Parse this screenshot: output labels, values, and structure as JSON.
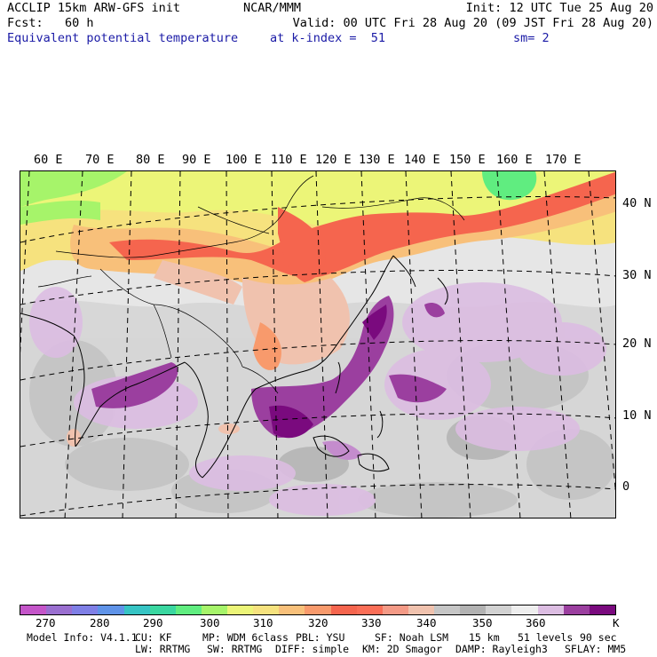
{
  "header": {
    "model": "ACCLIP 15km ARW-GFS init",
    "org": "NCAR/MMM",
    "init": "Init: 12 UTC Tue 25 Aug 20",
    "fcst": "Fcst:   60 h",
    "valid": "Valid: 00 UTC Fri 28 Aug 20 (09 JST Fri 28 Aug 20)",
    "field": "Equivalent potential temperature",
    "level": "at k-index =  51",
    "smooth": "sm= 2"
  },
  "map": {
    "lon_labels": [
      "60 E",
      "70 E",
      "80 E",
      "90 E",
      "100 E",
      "110 E",
      "120 E",
      "130 E",
      "140 E",
      "150 E",
      "160 E",
      "170 E"
    ],
    "lat_labels": [
      "40 N",
      "30 N",
      "20 N",
      "10 N",
      "0"
    ]
  },
  "colorbar": {
    "colors": [
      "#c455c9",
      "#9a6fd0",
      "#7f7fe6",
      "#5f93e8",
      "#36c4c4",
      "#3ad7a0",
      "#60ed80",
      "#a6f46a",
      "#ecf578",
      "#f6e27e",
      "#f8c07a",
      "#f89a6c",
      "#f5654e",
      "#fa6e57",
      "#f49a86",
      "#f0c2ae",
      "#c6c6c6",
      "#b2b2b2",
      "#d2d2d2",
      "#eeeeee",
      "#dcbde2",
      "#9b3f9f",
      "#7a0a7e"
    ],
    "tick_labels": [
      "270",
      "280",
      "290",
      "300",
      "310",
      "320",
      "330",
      "340",
      "350",
      "360",
      "K"
    ]
  },
  "model_info": {
    "line1": [
      "Model Info: V4.1.1",
      "CU: KF",
      "MP: WDM 6class",
      "PBL: YSU",
      "SF: Noah LSM",
      "15 km",
      "51 levels",
      "90 sec"
    ],
    "line2": [
      "LW: RRTMG",
      "SW: RRTMG",
      "DIFF: simple",
      "KM: 2D Smagor",
      "DAMP: Rayleigh3",
      "SFLAY: MM5"
    ]
  }
}
